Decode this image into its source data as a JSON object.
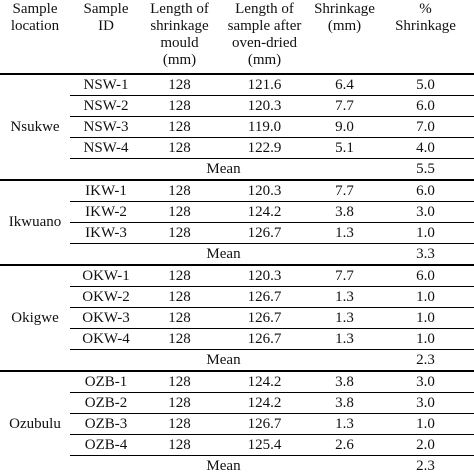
{
  "table": {
    "header": [
      [
        "Sample",
        "location"
      ],
      [
        "Sample",
        "ID"
      ],
      [
        "Length of",
        "shrinkage",
        "mould",
        "(mm)"
      ],
      [
        "Length of",
        "sample after",
        "oven-dried",
        "(mm)"
      ],
      [
        "Shrinkage",
        "(mm)"
      ],
      [
        "%",
        "Shrinkage"
      ]
    ],
    "groups": [
      {
        "location": "Nsukwe",
        "rows": [
          [
            "NSW-1",
            "128",
            "121.6",
            "6.4",
            "5.0"
          ],
          [
            "NSW-2",
            "128",
            "120.3",
            "7.7",
            "6.0"
          ],
          [
            "NSW-3",
            "128",
            "119.0",
            "9.0",
            "7.0"
          ],
          [
            "NSW-4",
            "128",
            "122.9",
            "5.1",
            "4.0"
          ]
        ],
        "mean_label": "Mean",
        "mean": "5.5"
      },
      {
        "location": "Ikwuano",
        "rows": [
          [
            "IKW-1",
            "128",
            "120.3",
            "7.7",
            "6.0"
          ],
          [
            "IKW-2",
            "128",
            "124.2",
            "3.8",
            "3.0"
          ],
          [
            "IKW-3",
            "128",
            "126.7",
            "1.3",
            "1.0"
          ]
        ],
        "mean_label": "Mean",
        "mean": "3.3"
      },
      {
        "location": "Okigwe",
        "rows": [
          [
            "OKW-1",
            "128",
            "120.3",
            "7.7",
            "6.0"
          ],
          [
            "OKW-2",
            "128",
            "126.7",
            "1.3",
            "1.0"
          ],
          [
            "OKW-3",
            "128",
            "126.7",
            "1.3",
            "1.0"
          ],
          [
            "OKW-4",
            "128",
            "126.7",
            "1.3",
            "1.0"
          ]
        ],
        "mean_label": "Mean",
        "mean": "2.3"
      },
      {
        "location": "Ozubulu",
        "rows": [
          [
            "OZB-1",
            "128",
            "124.2",
            "3.8",
            "3.0"
          ],
          [
            "OZB-2",
            "128",
            "124.2",
            "3.8",
            "3.0"
          ],
          [
            "OZB-3",
            "128",
            "126.7",
            "1.3",
            "1.0"
          ],
          [
            "OZB-4",
            "128",
            "125.4",
            "2.6",
            "2.0"
          ]
        ],
        "mean_label": "Mean",
        "mean": "2.3"
      }
    ]
  }
}
